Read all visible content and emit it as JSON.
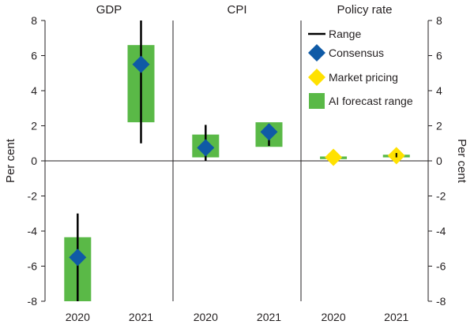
{
  "chart_data": {
    "type": "bar",
    "ylim": [
      -8,
      8
    ],
    "yticks": [
      8,
      6,
      4,
      2,
      0,
      -2,
      -4,
      -6,
      -8
    ],
    "ylabel": "Per cent",
    "y2label": "Per cent",
    "grid": false,
    "legend_position": "top-right",
    "legend": [
      {
        "label": "Range",
        "marker": "line",
        "color": "#000000"
      },
      {
        "label": "Consensus",
        "marker": "diamond",
        "color": "#0f5aa6"
      },
      {
        "label": "Market pricing",
        "marker": "diamond",
        "color": "#ffe100"
      },
      {
        "label": "AI forecast range",
        "marker": "rect",
        "color": "#5ab947"
      }
    ],
    "panels": [
      {
        "title": "GDP",
        "categories": [
          "2020",
          "2021"
        ],
        "ai_forecast_range": [
          [
            -8,
            -4.35
          ],
          [
            2.2,
            6.6
          ]
        ],
        "range": [
          [
            -8,
            -3
          ],
          [
            1,
            8
          ]
        ],
        "consensus": [
          -5.5,
          5.5
        ],
        "market_pricing": [
          null,
          null
        ]
      },
      {
        "title": "CPI",
        "categories": [
          "2020",
          "2021"
        ],
        "ai_forecast_range": [
          [
            0.2,
            1.5
          ],
          [
            0.8,
            2.2
          ]
        ],
        "range": [
          [
            0,
            2.05
          ],
          [
            0.85,
            2.1
          ]
        ],
        "consensus": [
          0.75,
          1.65
        ],
        "market_pricing": [
          null,
          null
        ]
      },
      {
        "title": "Policy rate",
        "categories": [
          "2020",
          "2021"
        ],
        "ai_forecast_range": [
          [
            0.1,
            0.25
          ],
          [
            0.2,
            0.35
          ]
        ],
        "range": [
          null,
          [
            0.2,
            0.45
          ]
        ],
        "consensus": [
          null,
          null
        ],
        "market_pricing": [
          0.2,
          0.3
        ]
      }
    ]
  }
}
